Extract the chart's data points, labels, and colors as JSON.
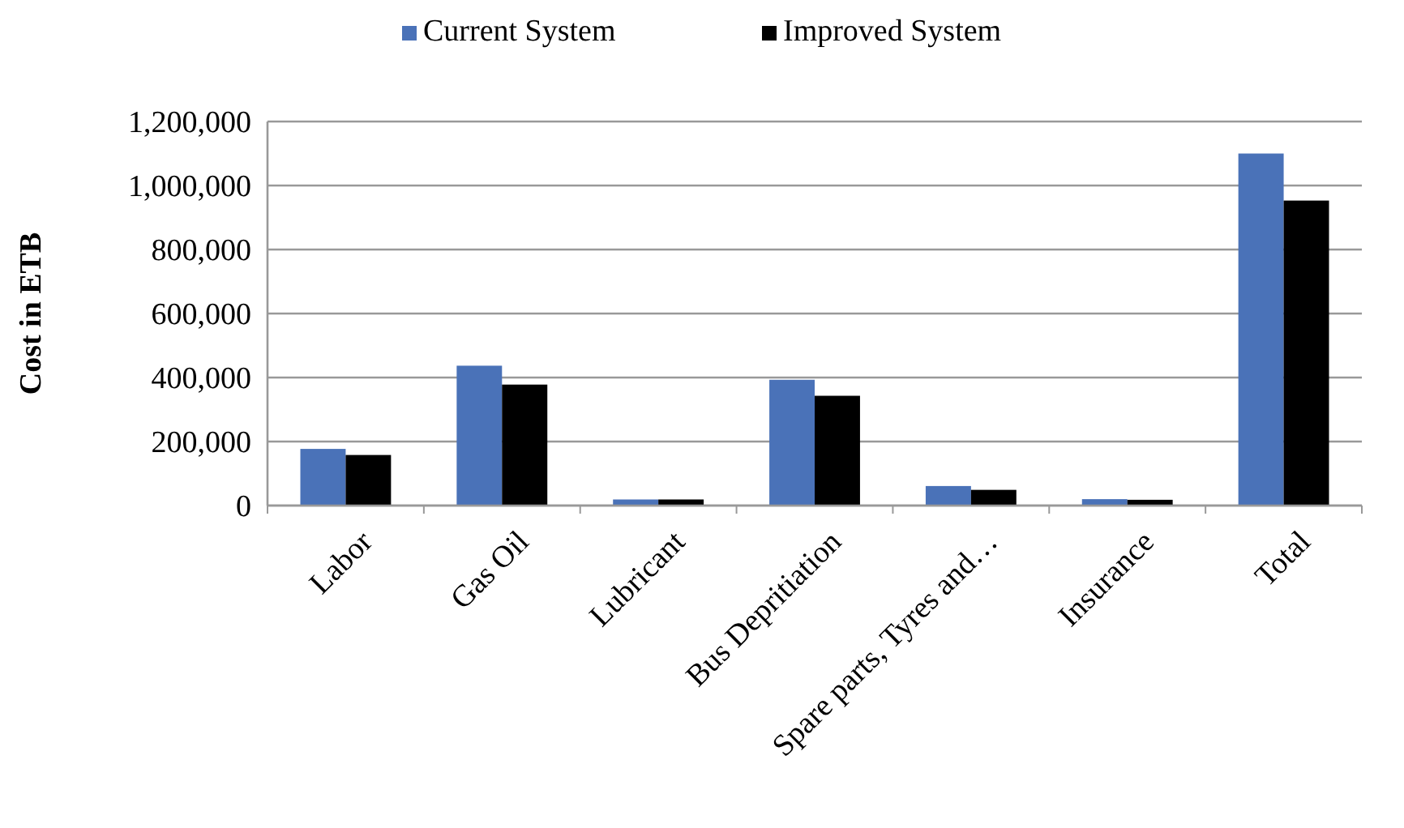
{
  "chart_data": {
    "type": "bar",
    "ylabel": "Cost in ETB",
    "categories": [
      "Labor",
      "Gas Oil",
      "Lubricant",
      "Bus Depritiation",
      "Spare parts, Tyres and…",
      "Insurance",
      "Total"
    ],
    "series": [
      {
        "name": "Current System",
        "color": "#4a72b8",
        "values": [
          177000,
          437000,
          19000,
          393000,
          61000,
          20000,
          1100000
        ]
      },
      {
        "name": "Improved System",
        "color": "#000000",
        "values": [
          158000,
          378000,
          19000,
          343000,
          49000,
          18000,
          953000
        ]
      }
    ],
    "ylim": [
      0,
      1200000
    ],
    "yticks": [
      {
        "value": 0,
        "label": "0"
      },
      {
        "value": 200000,
        "label": "200,000"
      },
      {
        "value": 400000,
        "label": "400,000"
      },
      {
        "value": 600000,
        "label": "600,000"
      },
      {
        "value": 800000,
        "label": "800,000"
      },
      {
        "value": 1000000,
        "label": "1,000,000"
      },
      {
        "value": 1200000,
        "label": "1,200,000"
      }
    ],
    "grid": "y",
    "legend": "top"
  }
}
